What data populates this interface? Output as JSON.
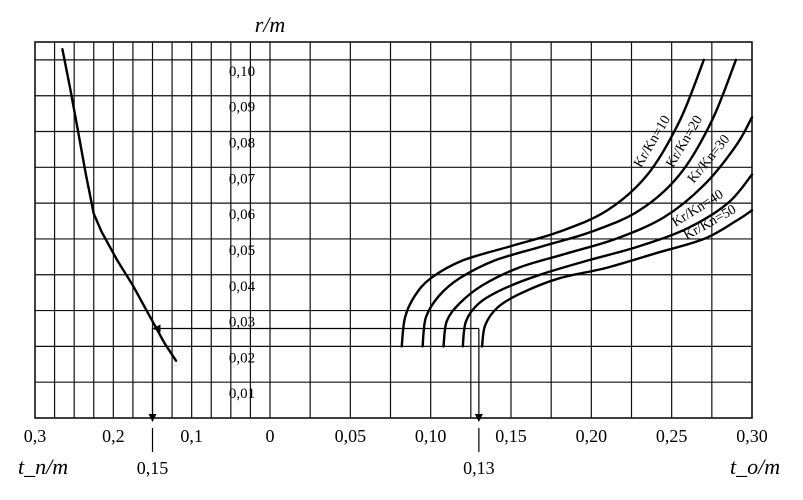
{
  "chart_data": {
    "type": "line",
    "title": "",
    "ylabel": "r/m",
    "ylim": [
      0.0,
      0.105
    ],
    "y_ticks": [
      "0,01",
      "0,02",
      "0,03",
      "0,04",
      "0,05",
      "0,06",
      "0,07",
      "0,08",
      "0,09",
      "0,10"
    ],
    "left_panel": {
      "xlabel": "t_n/m",
      "xlim": [
        0.3,
        0.0
      ],
      "x_ticks": [
        "0,3",
        "0,2",
        "0,1",
        "0"
      ],
      "series": [
        {
          "x": [
            0.265,
            0.255,
            0.245,
            0.235,
            0.225,
            0.215,
            0.195,
            0.175,
            0.155,
            0.135,
            0.12
          ],
          "y": [
            0.103,
            0.092,
            0.08,
            0.068,
            0.057,
            0.052,
            0.044,
            0.037,
            0.029,
            0.021,
            0.016
          ]
        }
      ],
      "annotation": {
        "label": "0,15",
        "x": 0.15,
        "y": 0.025
      }
    },
    "right_panel": {
      "xlabel": "t_o/m",
      "xlim": [
        0.0,
        0.3
      ],
      "x_ticks": [
        "0,05",
        "0,10",
        "0,15",
        "0,20",
        "0,25",
        "0,30"
      ],
      "series": [
        {
          "name": "Kr/Kn=10",
          "x": [
            0.082,
            0.084,
            0.09,
            0.1,
            0.12,
            0.15,
            0.18,
            0.21,
            0.235,
            0.255,
            0.27
          ],
          "y": [
            0.02,
            0.028,
            0.034,
            0.039,
            0.044,
            0.048,
            0.052,
            0.058,
            0.068,
            0.083,
            0.1
          ]
        },
        {
          "name": "Kr/Kn=20",
          "x": [
            0.095,
            0.097,
            0.105,
            0.118,
            0.14,
            0.17,
            0.2,
            0.23,
            0.255,
            0.275,
            0.29
          ],
          "y": [
            0.02,
            0.028,
            0.034,
            0.039,
            0.044,
            0.048,
            0.052,
            0.058,
            0.068,
            0.083,
            0.1
          ]
        },
        {
          "name": "Kr/Kn=30",
          "x": [
            0.108,
            0.11,
            0.118,
            0.132,
            0.155,
            0.185,
            0.215,
            0.245,
            0.27,
            0.29,
            0.3
          ],
          "y": [
            0.02,
            0.027,
            0.032,
            0.037,
            0.042,
            0.046,
            0.05,
            0.056,
            0.065,
            0.076,
            0.084
          ]
        },
        {
          "name": "Kr/Kn=40",
          "x": [
            0.12,
            0.122,
            0.13,
            0.145,
            0.168,
            0.198,
            0.23,
            0.26,
            0.285,
            0.3
          ],
          "y": [
            0.02,
            0.027,
            0.032,
            0.036,
            0.04,
            0.044,
            0.048,
            0.053,
            0.06,
            0.068
          ]
        },
        {
          "name": "Kr/Kn=50",
          "x": [
            0.132,
            0.134,
            0.142,
            0.157,
            0.18,
            0.21,
            0.24,
            0.27,
            0.29,
            0.3
          ],
          "y": [
            0.02,
            0.026,
            0.031,
            0.035,
            0.039,
            0.042,
            0.046,
            0.05,
            0.055,
            0.058
          ]
        }
      ],
      "annotation": {
        "label": "0,13",
        "x": 0.13,
        "y": 0.025
      }
    },
    "grid": true
  }
}
